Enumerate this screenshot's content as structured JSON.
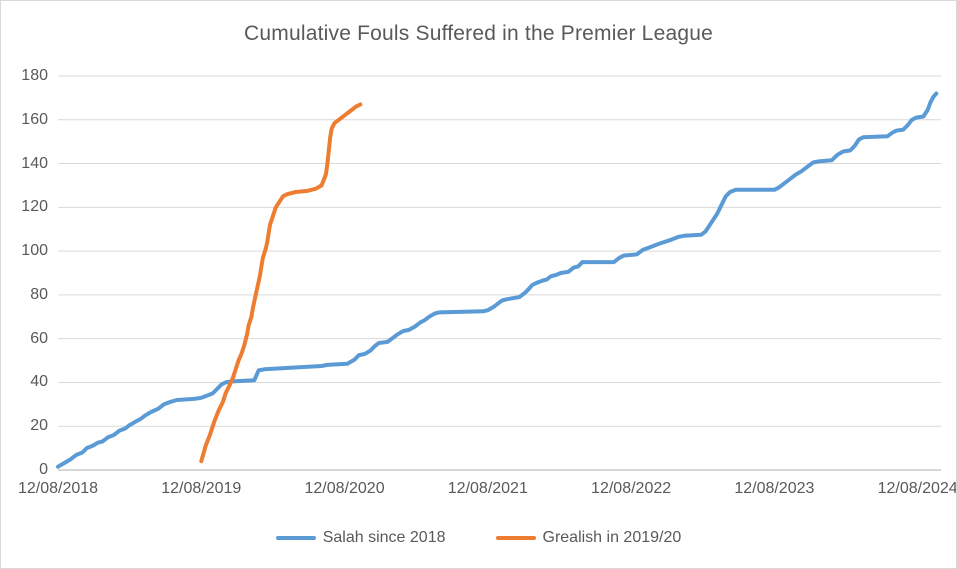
{
  "chart_data": {
    "type": "line",
    "title": "Cumulative Fouls Suffered in the Premier League",
    "xlabel": "",
    "ylabel": "",
    "grid": "horizontal",
    "legend_position": "bottom",
    "x_axis": {
      "unit": "years since 12/08/2018",
      "range": [
        0,
        6.163
      ],
      "tick_positions": [
        0,
        1,
        2,
        3,
        4,
        5,
        6
      ],
      "tick_labels": [
        "12/08/2018",
        "12/08/2019",
        "12/08/2020",
        "12/08/2021",
        "12/08/2022",
        "12/08/2023",
        "12/08/2024"
      ]
    },
    "y_axis": {
      "range": [
        0,
        180
      ],
      "ticks": [
        0,
        20,
        40,
        60,
        80,
        100,
        120,
        140,
        160,
        180
      ]
    },
    "colors": {
      "gridline": "#d9d9d9",
      "axis_line": "#bfbfbf",
      "text": "#595959",
      "series_blue": "#5b9bd5",
      "series_orange": "#ed7d31"
    },
    "series": [
      {
        "id": "salah",
        "name": "Salah since 2018",
        "color": "#5b9bd5",
        "points": [
          [
            0,
            1.5
          ],
          [
            0.04,
            3
          ],
          [
            0.09,
            5
          ],
          [
            0.13,
            7
          ],
          [
            0.17,
            8
          ],
          [
            0.2,
            10
          ],
          [
            0.24,
            11
          ],
          [
            0.28,
            12.5
          ],
          [
            0.31,
            13
          ],
          [
            0.35,
            15
          ],
          [
            0.39,
            16
          ],
          [
            0.43,
            18
          ],
          [
            0.47,
            19
          ],
          [
            0.5,
            20.5
          ],
          [
            0.54,
            22
          ],
          [
            0.58,
            23.5
          ],
          [
            0.61,
            25
          ],
          [
            0.65,
            26.5
          ],
          [
            0.7,
            28
          ],
          [
            0.74,
            30
          ],
          [
            0.78,
            31
          ],
          [
            0.83,
            32
          ],
          [
            0.95,
            32.5
          ],
          [
            1,
            33
          ],
          [
            1.04,
            34
          ],
          [
            1.08,
            35
          ],
          [
            1.11,
            37
          ],
          [
            1.14,
            39
          ],
          [
            1.17,
            40
          ],
          [
            1.22,
            40.5
          ],
          [
            1.37,
            41
          ],
          [
            1.4,
            45.5
          ],
          [
            1.44,
            46
          ],
          [
            1.7,
            47
          ],
          [
            1.84,
            47.5
          ],
          [
            1.88,
            48
          ],
          [
            2.02,
            48.5
          ],
          [
            2.07,
            50.5
          ],
          [
            2.1,
            52.5
          ],
          [
            2.14,
            53
          ],
          [
            2.18,
            54.5
          ],
          [
            2.21,
            56.5
          ],
          [
            2.24,
            58
          ],
          [
            2.3,
            58.5
          ],
          [
            2.33,
            60
          ],
          [
            2.37,
            62
          ],
          [
            2.41,
            63.5
          ],
          [
            2.45,
            64
          ],
          [
            2.49,
            65.5
          ],
          [
            2.53,
            67.5
          ],
          [
            2.56,
            68.5
          ],
          [
            2.59,
            70
          ],
          [
            2.63,
            71.5
          ],
          [
            2.66,
            72
          ],
          [
            2.97,
            72.5
          ],
          [
            3,
            73
          ],
          [
            3.04,
            74.5
          ],
          [
            3.07,
            76
          ],
          [
            3.1,
            77.5
          ],
          [
            3.13,
            78
          ],
          [
            3.22,
            79
          ],
          [
            3.26,
            81
          ],
          [
            3.29,
            83
          ],
          [
            3.31,
            84.5
          ],
          [
            3.34,
            85.5
          ],
          [
            3.38,
            86.5
          ],
          [
            3.41,
            87
          ],
          [
            3.44,
            88.5
          ],
          [
            3.47,
            89
          ],
          [
            3.51,
            90
          ],
          [
            3.56,
            90.5
          ],
          [
            3.6,
            92.5
          ],
          [
            3.63,
            93
          ],
          [
            3.66,
            95
          ],
          [
            3.88,
            95
          ],
          [
            3.92,
            97
          ],
          [
            3.95,
            98
          ],
          [
            4.04,
            98.5
          ],
          [
            4.08,
            100.5
          ],
          [
            4.14,
            102
          ],
          [
            4.2,
            103.5
          ],
          [
            4.27,
            105
          ],
          [
            4.33,
            106.5
          ],
          [
            4.37,
            107
          ],
          [
            4.49,
            107.5
          ],
          [
            4.52,
            109
          ],
          [
            4.56,
            113
          ],
          [
            4.6,
            117
          ],
          [
            4.63,
            121
          ],
          [
            4.66,
            125
          ],
          [
            4.69,
            127
          ],
          [
            4.73,
            128
          ],
          [
            5,
            128
          ],
          [
            5.03,
            129
          ],
          [
            5.07,
            131
          ],
          [
            5.11,
            133
          ],
          [
            5.15,
            135
          ],
          [
            5.19,
            136.5
          ],
          [
            5.23,
            138.5
          ],
          [
            5.27,
            140.5
          ],
          [
            5.31,
            141
          ],
          [
            5.4,
            141.5
          ],
          [
            5.44,
            144
          ],
          [
            5.48,
            145.5
          ],
          [
            5.53,
            146
          ],
          [
            5.56,
            148
          ],
          [
            5.59,
            151
          ],
          [
            5.62,
            152
          ],
          [
            5.79,
            152.5
          ],
          [
            5.82,
            154
          ],
          [
            5.85,
            155
          ],
          [
            5.9,
            155.5
          ],
          [
            5.93,
            157.5
          ],
          [
            5.96,
            160
          ],
          [
            5.99,
            161
          ],
          [
            6.04,
            161.5
          ],
          [
            6.07,
            164.5
          ],
          [
            6.09,
            168
          ],
          [
            6.11,
            170.5
          ],
          [
            6.13,
            172
          ]
        ]
      },
      {
        "id": "grealish",
        "name": "Grealish in 2019/20",
        "color": "#ed7d31",
        "points": [
          [
            1,
            4
          ],
          [
            1.03,
            11
          ],
          [
            1.06,
            16
          ],
          [
            1.09,
            22
          ],
          [
            1.12,
            27
          ],
          [
            1.15,
            31
          ],
          [
            1.17,
            35
          ],
          [
            1.2,
            39
          ],
          [
            1.22,
            42
          ],
          [
            1.24,
            46
          ],
          [
            1.26,
            50
          ],
          [
            1.28,
            53
          ],
          [
            1.3,
            57
          ],
          [
            1.32,
            62
          ],
          [
            1.33,
            66
          ],
          [
            1.35,
            70
          ],
          [
            1.36,
            74
          ],
          [
            1.38,
            80
          ],
          [
            1.4,
            86
          ],
          [
            1.41,
            89
          ],
          [
            1.42,
            93
          ],
          [
            1.43,
            97
          ],
          [
            1.45,
            101
          ],
          [
            1.46,
            104
          ],
          [
            1.47,
            108
          ],
          [
            1.48,
            112
          ],
          [
            1.5,
            116
          ],
          [
            1.52,
            120
          ],
          [
            1.55,
            123
          ],
          [
            1.57,
            125
          ],
          [
            1.6,
            126
          ],
          [
            1.66,
            127
          ],
          [
            1.74,
            127.5
          ],
          [
            1.8,
            128.5
          ],
          [
            1.84,
            130
          ],
          [
            1.87,
            135
          ],
          [
            1.88,
            140
          ],
          [
            1.89,
            146
          ],
          [
            1.9,
            152
          ],
          [
            1.91,
            156
          ],
          [
            1.93,
            158.5
          ],
          [
            1.96,
            160
          ],
          [
            2,
            162
          ],
          [
            2.04,
            164
          ],
          [
            2.08,
            166
          ],
          [
            2.11,
            167
          ]
        ]
      }
    ],
    "legend": {
      "items": [
        {
          "label": "Salah since 2018"
        },
        {
          "label": "Grealish in 2019/20"
        }
      ]
    }
  }
}
